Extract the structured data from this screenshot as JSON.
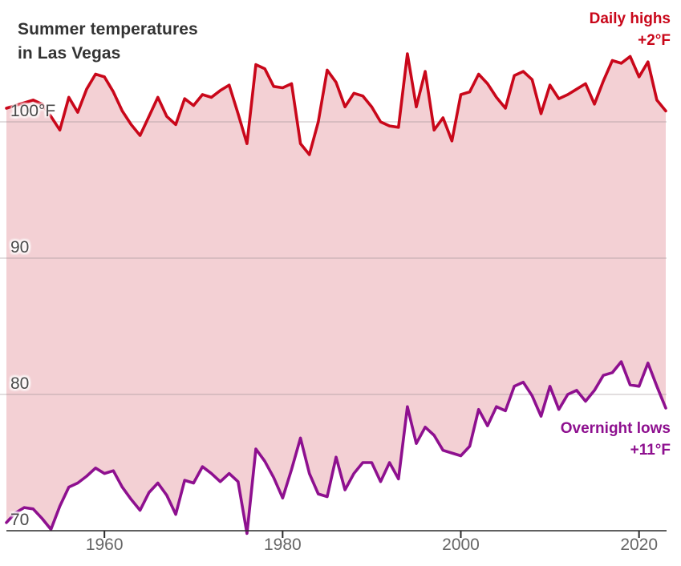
{
  "header": {
    "title_line1": "Summer temperatures",
    "title_line2": "in Las Vegas"
  },
  "annotations": {
    "highs_label": "Daily highs",
    "highs_delta": "+2°F",
    "lows_label": "Overnight lows",
    "lows_delta": "+11°F"
  },
  "colors": {
    "highs_line": "#c9071a",
    "lows_line": "#8e108f",
    "band_fill": "#f3d0d4",
    "gridline": "rgba(150,140,142,0.45)",
    "axis_line": "#2b2b2b",
    "title_text": "#333333",
    "x_tick_text": "#666666",
    "y_tick_text": "#4a4a4a",
    "background": "#ffffff"
  },
  "chart_data": {
    "type": "line",
    "title": "Summer temperatures in Las Vegas",
    "subtitle": "",
    "unit": "°F",
    "xlim": [
      1949,
      2023
    ],
    "ylim": [
      66,
      107
    ],
    "grid": "horizontal",
    "legend_position": "inline-annotations-right",
    "area_between_series": true,
    "x": [
      1949,
      1950,
      1951,
      1952,
      1953,
      1954,
      1955,
      1956,
      1957,
      1958,
      1959,
      1960,
      1961,
      1962,
      1963,
      1964,
      1965,
      1966,
      1967,
      1968,
      1969,
      1970,
      1971,
      1972,
      1973,
      1974,
      1975,
      1976,
      1977,
      1978,
      1979,
      1980,
      1981,
      1982,
      1983,
      1984,
      1985,
      1986,
      1987,
      1988,
      1989,
      1990,
      1991,
      1992,
      1993,
      1994,
      1995,
      1996,
      1997,
      1998,
      1999,
      2000,
      2001,
      2002,
      2003,
      2004,
      2005,
      2006,
      2007,
      2008,
      2009,
      2010,
      2011,
      2012,
      2013,
      2014,
      2015,
      2016,
      2017,
      2018,
      2019,
      2020,
      2021,
      2022,
      2023
    ],
    "series": [
      {
        "name": "Daily highs",
        "trend_label": "+2°F",
        "color": "#c9071a",
        "values": [
          101.0,
          101.2,
          101.4,
          101.6,
          101.3,
          100.4,
          99.4,
          101.8,
          100.7,
          102.4,
          103.5,
          103.3,
          102.2,
          100.8,
          99.8,
          99.0,
          100.4,
          101.8,
          100.4,
          99.8,
          101.7,
          101.2,
          102.0,
          101.8,
          102.3,
          102.7,
          100.6,
          98.4,
          104.2,
          103.9,
          102.6,
          102.5,
          102.8,
          98.4,
          97.6,
          100.0,
          103.8,
          102.9,
          101.1,
          102.1,
          101.9,
          101.1,
          100.0,
          99.7,
          99.6,
          105.0,
          101.1,
          103.7,
          99.4,
          100.3,
          98.6,
          102.0,
          102.2,
          103.5,
          102.8,
          101.8,
          101.0,
          103.4,
          103.7,
          103.1,
          100.6,
          102.7,
          101.7,
          102.0,
          102.4,
          102.8,
          101.3,
          103.0,
          104.5,
          104.3,
          104.8,
          103.3,
          104.4,
          101.6,
          100.8
        ]
      },
      {
        "name": "Overnight lows",
        "trend_label": "+11°F",
        "color": "#8e108f",
        "values": [
          70.6,
          71.3,
          71.7,
          71.6,
          70.9,
          70.1,
          71.8,
          73.2,
          73.5,
          74.0,
          74.6,
          74.2,
          74.4,
          73.2,
          72.3,
          71.5,
          72.8,
          73.5,
          72.6,
          71.2,
          73.7,
          73.5,
          74.7,
          74.2,
          73.6,
          74.2,
          73.6,
          69.8,
          76.0,
          75.1,
          73.9,
          72.4,
          74.5,
          76.8,
          74.2,
          72.7,
          72.5,
          75.4,
          73.0,
          74.2,
          75.0,
          75.0,
          73.6,
          75.0,
          73.8,
          79.1,
          76.4,
          77.6,
          77.0,
          75.9,
          75.7,
          75.5,
          76.2,
          78.9,
          77.7,
          79.1,
          78.8,
          80.6,
          80.9,
          79.9,
          78.4,
          80.6,
          78.9,
          80.0,
          80.3,
          79.5,
          80.3,
          81.4,
          81.6,
          82.4,
          80.7,
          80.6,
          82.3,
          80.6,
          79.0
        ]
      }
    ],
    "x_ticks": [
      {
        "value": 1960,
        "label": "1960"
      },
      {
        "value": 1980,
        "label": "1980"
      },
      {
        "value": 2000,
        "label": "2000"
      },
      {
        "value": 2020,
        "label": "2020"
      }
    ],
    "y_ticks": [
      {
        "value": 100,
        "label": "100°F"
      },
      {
        "value": 90,
        "label": "90"
      },
      {
        "value": 80,
        "label": "80"
      },
      {
        "value": 70,
        "label": "70"
      }
    ]
  }
}
